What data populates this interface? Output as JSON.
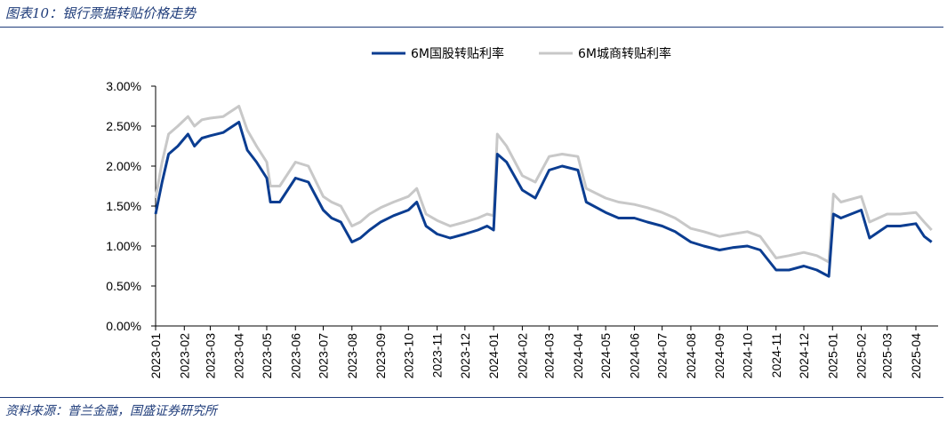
{
  "figure": {
    "title": "图表10：银行票据转贴价格走势",
    "source": "资料来源：普兰金融，国盛证券研究所"
  },
  "colors": {
    "accent": "#1f3c7a",
    "series_gq": "#0b3d91",
    "series_cs": "#c8c8c8"
  },
  "chart_data": {
    "type": "line",
    "title": "",
    "xlabel": "",
    "ylabel": "",
    "ylim": [
      0,
      3.0
    ],
    "yticks": [
      "0.00%",
      "0.50%",
      "1.00%",
      "1.50%",
      "2.00%",
      "2.50%",
      "3.00%"
    ],
    "grid": false,
    "legend_position": "top",
    "x_tick_labels": [
      "2023-01",
      "2023-02",
      "2023-03",
      "2023-04",
      "2023-05",
      "2023-06",
      "2023-07",
      "2023-08",
      "2023-09",
      "2023-10",
      "2023-11",
      "2023-12",
      "2024-01",
      "2024-02",
      "2024-03",
      "2024-04",
      "2024-05",
      "2024-06",
      "2024-07",
      "2024-08",
      "2024-09",
      "2024-10",
      "2024-11",
      "2024-12",
      "2025-01",
      "2025-02",
      "2025-03",
      "2025-04"
    ],
    "series": [
      {
        "name": "6M国股转贴利率",
        "x": [
          "2023-01-01",
          "2023-01-08",
          "2023-01-15",
          "2023-01-25",
          "2023-02-05",
          "2023-02-12",
          "2023-02-20",
          "2023-03-01",
          "2023-03-15",
          "2023-04-01",
          "2023-04-10",
          "2023-04-20",
          "2023-05-01",
          "2023-05-05",
          "2023-05-15",
          "2023-06-01",
          "2023-06-15",
          "2023-07-01",
          "2023-07-10",
          "2023-07-20",
          "2023-08-01",
          "2023-08-10",
          "2023-08-20",
          "2023-09-01",
          "2023-09-15",
          "2023-10-01",
          "2023-10-10",
          "2023-10-20",
          "2023-11-01",
          "2023-11-15",
          "2023-12-01",
          "2023-12-15",
          "2023-12-25",
          "2024-01-01",
          "2024-01-05",
          "2024-01-15",
          "2024-02-01",
          "2024-02-15",
          "2024-03-01",
          "2024-03-15",
          "2024-04-01",
          "2024-04-10",
          "2024-05-01",
          "2024-05-15",
          "2024-06-01",
          "2024-06-15",
          "2024-07-01",
          "2024-07-15",
          "2024-08-01",
          "2024-08-15",
          "2024-09-01",
          "2024-09-15",
          "2024-10-01",
          "2024-10-15",
          "2024-11-01",
          "2024-11-15",
          "2024-12-01",
          "2024-12-15",
          "2024-12-28",
          "2025-01-02",
          "2025-01-10",
          "2025-02-01",
          "2025-02-10",
          "2025-03-01",
          "2025-03-15",
          "2025-04-01",
          "2025-04-10",
          "2025-04-18"
        ],
        "values": [
          1.4,
          1.8,
          2.15,
          2.25,
          2.4,
          2.25,
          2.35,
          2.38,
          2.42,
          2.55,
          2.2,
          2.05,
          1.85,
          1.55,
          1.55,
          1.85,
          1.8,
          1.45,
          1.35,
          1.3,
          1.05,
          1.1,
          1.2,
          1.3,
          1.38,
          1.45,
          1.55,
          1.25,
          1.15,
          1.1,
          1.15,
          1.2,
          1.25,
          1.2,
          2.15,
          2.05,
          1.7,
          1.6,
          1.95,
          2.0,
          1.95,
          1.55,
          1.42,
          1.35,
          1.35,
          1.3,
          1.25,
          1.18,
          1.05,
          1.0,
          0.95,
          0.98,
          1.0,
          0.95,
          0.7,
          0.7,
          0.75,
          0.7,
          0.62,
          1.4,
          1.35,
          1.45,
          1.1,
          1.25,
          1.25,
          1.28,
          1.12,
          1.05
        ]
      },
      {
        "name": "6M城商转贴利率",
        "x": [
          "2023-01-01",
          "2023-01-08",
          "2023-01-15",
          "2023-01-25",
          "2023-02-05",
          "2023-02-12",
          "2023-02-20",
          "2023-03-01",
          "2023-03-15",
          "2023-04-01",
          "2023-04-10",
          "2023-04-20",
          "2023-05-01",
          "2023-05-05",
          "2023-05-15",
          "2023-06-01",
          "2023-06-15",
          "2023-07-01",
          "2023-07-10",
          "2023-07-20",
          "2023-08-01",
          "2023-08-10",
          "2023-08-20",
          "2023-09-01",
          "2023-09-15",
          "2023-10-01",
          "2023-10-10",
          "2023-10-20",
          "2023-11-01",
          "2023-11-15",
          "2023-12-01",
          "2023-12-15",
          "2023-12-25",
          "2024-01-01",
          "2024-01-05",
          "2024-01-15",
          "2024-02-01",
          "2024-02-15",
          "2024-03-01",
          "2024-03-15",
          "2024-04-01",
          "2024-04-10",
          "2024-05-01",
          "2024-05-15",
          "2024-06-01",
          "2024-06-15",
          "2024-07-01",
          "2024-07-15",
          "2024-08-01",
          "2024-08-15",
          "2024-09-01",
          "2024-09-15",
          "2024-10-01",
          "2024-10-15",
          "2024-11-01",
          "2024-11-15",
          "2024-12-01",
          "2024-12-15",
          "2024-12-28",
          "2025-01-02",
          "2025-01-10",
          "2025-02-01",
          "2025-02-10",
          "2025-03-01",
          "2025-03-15",
          "2025-04-01",
          "2025-04-10",
          "2025-04-18"
        ],
        "values": [
          1.6,
          2.05,
          2.4,
          2.5,
          2.62,
          2.5,
          2.58,
          2.6,
          2.62,
          2.75,
          2.45,
          2.25,
          2.05,
          1.75,
          1.75,
          2.05,
          2.0,
          1.62,
          1.55,
          1.5,
          1.25,
          1.3,
          1.4,
          1.48,
          1.55,
          1.62,
          1.72,
          1.4,
          1.32,
          1.25,
          1.3,
          1.35,
          1.4,
          1.38,
          2.4,
          2.25,
          1.88,
          1.8,
          2.12,
          2.15,
          2.12,
          1.72,
          1.6,
          1.55,
          1.52,
          1.48,
          1.42,
          1.35,
          1.22,
          1.18,
          1.12,
          1.15,
          1.18,
          1.12,
          0.85,
          0.88,
          0.92,
          0.88,
          0.8,
          1.65,
          1.55,
          1.62,
          1.3,
          1.4,
          1.4,
          1.42,
          1.3,
          1.2
        ]
      }
    ]
  }
}
